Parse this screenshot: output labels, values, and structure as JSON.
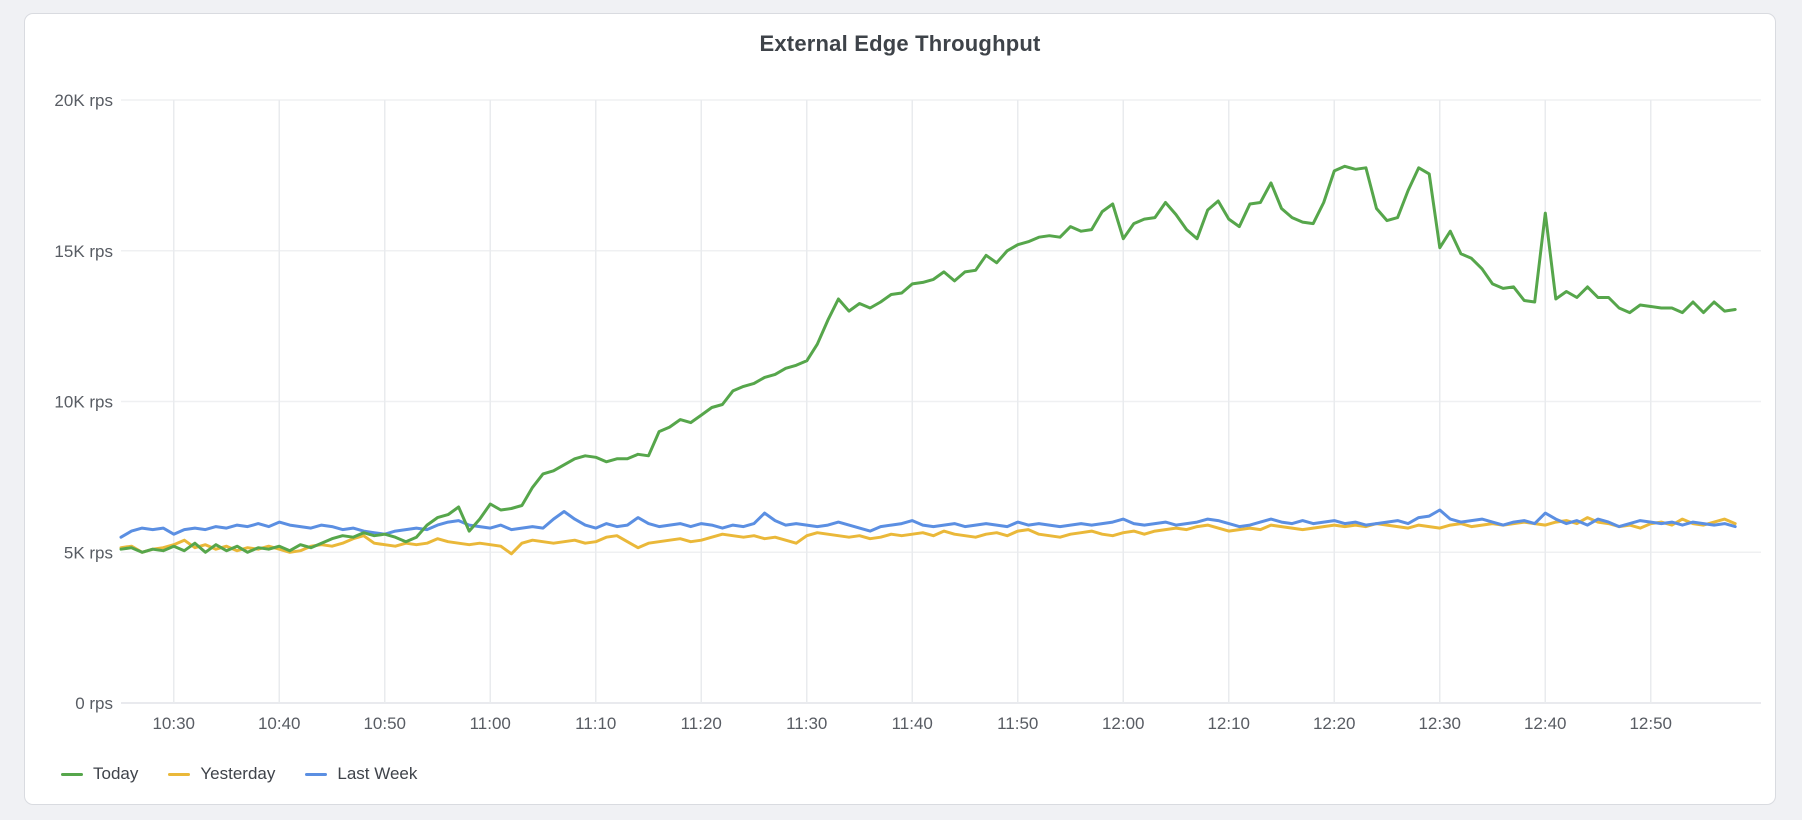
{
  "panel": {
    "title": "External Edge Throughput"
  },
  "chart_data": {
    "type": "line",
    "title": "External Edge Throughput",
    "unit": "rps",
    "x_start": "10:25",
    "x_interval_minutes": 1,
    "x_tick_labels": [
      "10:30",
      "10:40",
      "10:50",
      "11:00",
      "11:10",
      "11:20",
      "11:30",
      "11:40",
      "11:50",
      "12:00",
      "12:10",
      "12:20",
      "12:30",
      "12:40",
      "12:50"
    ],
    "y_tick_labels": [
      "0 rps",
      "5K rps",
      "10K rps",
      "15K rps",
      "20K rps"
    ],
    "ylim": [
      0,
      20000
    ],
    "grid": true,
    "legend_position": "bottom-left",
    "colors": {
      "grid_horizontal": "#eff0f2",
      "grid_vertical": "#e9ebee",
      "zero_line": "#e2e4e8",
      "axis_text": "#585c63"
    },
    "series": [
      {
        "name": "Today",
        "color": "#56a64b",
        "values_krps": [
          5.1,
          5.15,
          5.0,
          5.1,
          5.05,
          5.2,
          5.05,
          5.3,
          5.0,
          5.25,
          5.05,
          5.2,
          5.0,
          5.15,
          5.1,
          5.2,
          5.05,
          5.25,
          5.15,
          5.3,
          5.45,
          5.55,
          5.5,
          5.65,
          5.55,
          5.6,
          5.5,
          5.35,
          5.5,
          5.9,
          6.15,
          6.25,
          6.5,
          5.7,
          6.1,
          6.6,
          6.4,
          6.45,
          6.55,
          7.15,
          7.6,
          7.7,
          7.9,
          8.1,
          8.2,
          8.15,
          8.0,
          8.1,
          8.1,
          8.25,
          8.2,
          9.0,
          9.15,
          9.4,
          9.3,
          9.55,
          9.8,
          9.9,
          10.35,
          10.5,
          10.6,
          10.8,
          10.9,
          11.1,
          11.2,
          11.35,
          11.9,
          12.7,
          13.4,
          13.0,
          13.25,
          13.1,
          13.3,
          13.55,
          13.6,
          13.9,
          13.95,
          14.05,
          14.3,
          14.0,
          14.3,
          14.35,
          14.85,
          14.6,
          15.0,
          15.2,
          15.3,
          15.45,
          15.5,
          15.45,
          15.8,
          15.65,
          15.7,
          16.3,
          16.55,
          15.4,
          15.9,
          16.05,
          16.1,
          16.6,
          16.2,
          15.7,
          15.4,
          16.35,
          16.65,
          16.05,
          15.8,
          16.55,
          16.6,
          17.25,
          16.4,
          16.1,
          15.95,
          15.9,
          16.6,
          17.65,
          17.8,
          17.7,
          17.75,
          16.4,
          16.0,
          16.1,
          17.0,
          17.75,
          17.55,
          15.1,
          15.65,
          14.9,
          14.75,
          14.4,
          13.9,
          13.75,
          13.8,
          13.35,
          13.3,
          16.25,
          13.4,
          13.65,
          13.45,
          13.8,
          13.45,
          13.45,
          13.1,
          12.95,
          13.2,
          13.15,
          13.1,
          13.1,
          12.95,
          13.3,
          12.95,
          13.3,
          13.0,
          13.05
        ]
      },
      {
        "name": "Yesterday",
        "color": "#eab839",
        "values_krps": [
          5.15,
          5.2,
          5.0,
          5.1,
          5.15,
          5.25,
          5.4,
          5.15,
          5.25,
          5.1,
          5.2,
          5.05,
          5.15,
          5.1,
          5.2,
          5.1,
          5.0,
          5.05,
          5.2,
          5.25,
          5.2,
          5.3,
          5.45,
          5.55,
          5.3,
          5.25,
          5.2,
          5.3,
          5.25,
          5.3,
          5.45,
          5.35,
          5.3,
          5.25,
          5.3,
          5.25,
          5.2,
          4.95,
          5.3,
          5.4,
          5.35,
          5.3,
          5.35,
          5.4,
          5.3,
          5.35,
          5.5,
          5.55,
          5.35,
          5.15,
          5.3,
          5.35,
          5.4,
          5.45,
          5.35,
          5.4,
          5.5,
          5.6,
          5.55,
          5.5,
          5.55,
          5.45,
          5.5,
          5.4,
          5.3,
          5.55,
          5.65,
          5.6,
          5.55,
          5.5,
          5.55,
          5.45,
          5.5,
          5.6,
          5.55,
          5.6,
          5.65,
          5.55,
          5.7,
          5.6,
          5.55,
          5.5,
          5.6,
          5.65,
          5.55,
          5.7,
          5.75,
          5.6,
          5.55,
          5.5,
          5.6,
          5.65,
          5.7,
          5.6,
          5.55,
          5.65,
          5.7,
          5.6,
          5.7,
          5.75,
          5.8,
          5.75,
          5.85,
          5.9,
          5.8,
          5.7,
          5.75,
          5.8,
          5.75,
          5.9,
          5.85,
          5.8,
          5.75,
          5.8,
          5.85,
          5.9,
          5.85,
          5.9,
          5.85,
          5.95,
          5.9,
          5.85,
          5.8,
          5.9,
          5.85,
          5.8,
          5.9,
          5.95,
          5.85,
          5.9,
          5.95,
          5.9,
          5.95,
          6.0,
          5.95,
          5.9,
          6.0,
          6.05,
          5.95,
          6.15,
          6.0,
          5.95,
          5.85,
          5.9,
          5.8,
          5.95,
          6.0,
          5.9,
          6.1,
          5.95,
          5.9,
          6.0,
          6.1,
          5.95
        ]
      },
      {
        "name": "Last Week",
        "color": "#5b8fe2",
        "values_krps": [
          5.5,
          5.7,
          5.8,
          5.75,
          5.8,
          5.6,
          5.75,
          5.8,
          5.75,
          5.85,
          5.8,
          5.9,
          5.85,
          5.95,
          5.85,
          6.0,
          5.9,
          5.85,
          5.8,
          5.9,
          5.85,
          5.75,
          5.8,
          5.7,
          5.65,
          5.6,
          5.7,
          5.75,
          5.8,
          5.75,
          5.9,
          6.0,
          6.05,
          5.9,
          5.85,
          5.8,
          5.9,
          5.75,
          5.8,
          5.85,
          5.8,
          6.1,
          6.35,
          6.1,
          5.9,
          5.8,
          5.95,
          5.85,
          5.9,
          6.15,
          5.95,
          5.85,
          5.9,
          5.95,
          5.85,
          5.95,
          5.9,
          5.8,
          5.9,
          5.85,
          5.95,
          6.3,
          6.05,
          5.9,
          5.95,
          5.9,
          5.85,
          5.9,
          6.0,
          5.9,
          5.8,
          5.7,
          5.85,
          5.9,
          5.95,
          6.05,
          5.9,
          5.85,
          5.9,
          5.95,
          5.85,
          5.9,
          5.95,
          5.9,
          5.85,
          6.0,
          5.9,
          5.95,
          5.9,
          5.85,
          5.9,
          5.95,
          5.9,
          5.95,
          6.0,
          6.1,
          5.95,
          5.9,
          5.95,
          6.0,
          5.9,
          5.95,
          6.0,
          6.1,
          6.05,
          5.95,
          5.85,
          5.9,
          6.0,
          6.1,
          6.0,
          5.95,
          6.05,
          5.95,
          6.0,
          6.05,
          5.95,
          6.0,
          5.9,
          5.95,
          6.0,
          6.05,
          5.95,
          6.15,
          6.2,
          6.4,
          6.1,
          6.0,
          6.05,
          6.1,
          6.0,
          5.9,
          6.0,
          6.05,
          5.95,
          6.3,
          6.1,
          5.95,
          6.05,
          5.9,
          6.1,
          6.0,
          5.85,
          5.95,
          6.05,
          6.0,
          5.95,
          6.0,
          5.9,
          6.0,
          5.95,
          5.9,
          5.95,
          5.85
        ]
      }
    ]
  }
}
